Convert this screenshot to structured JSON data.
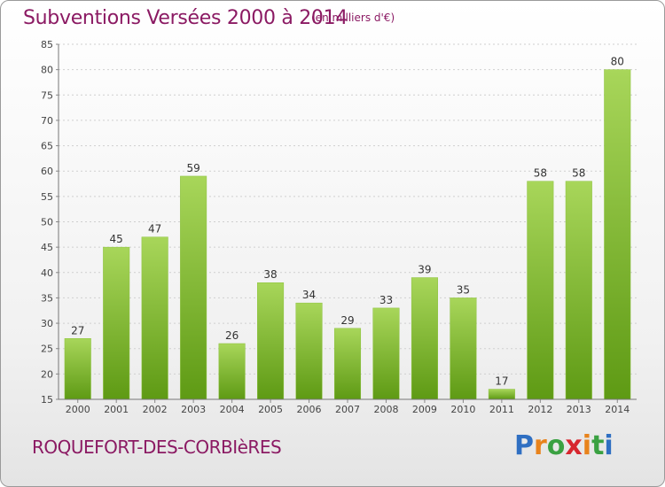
{
  "title": "Subventions Versées 2000 à 2014",
  "subtitle": "(en milliers d'€)",
  "commune": "ROQUEFORT-DES-CORBIèRES",
  "logo": {
    "letters": [
      "P",
      "r",
      "o",
      "x",
      "i",
      "t",
      "i"
    ],
    "colors": [
      "#2f6fc2",
      "#e8831c",
      "#3aa142",
      "#d7262f",
      "#e8831c",
      "#3aa142",
      "#2f6fc2"
    ]
  },
  "colors": {
    "bar_top": "#a8d65a",
    "bar_bottom": "#5e9a14",
    "title": "#8b1a63"
  },
  "chart_data": {
    "type": "bar",
    "categories": [
      "2000",
      "2001",
      "2002",
      "2003",
      "2004",
      "2005",
      "2006",
      "2007",
      "2008",
      "2009",
      "2010",
      "2011",
      "2012",
      "2013",
      "2014"
    ],
    "values": [
      27,
      45,
      47,
      59,
      26,
      38,
      34,
      29,
      33,
      39,
      35,
      17,
      58,
      58,
      80
    ],
    "ylim": [
      15,
      85
    ],
    "yticks": [
      15,
      20,
      25,
      30,
      35,
      40,
      45,
      50,
      55,
      60,
      65,
      70,
      75,
      80,
      85
    ],
    "grid": true
  }
}
